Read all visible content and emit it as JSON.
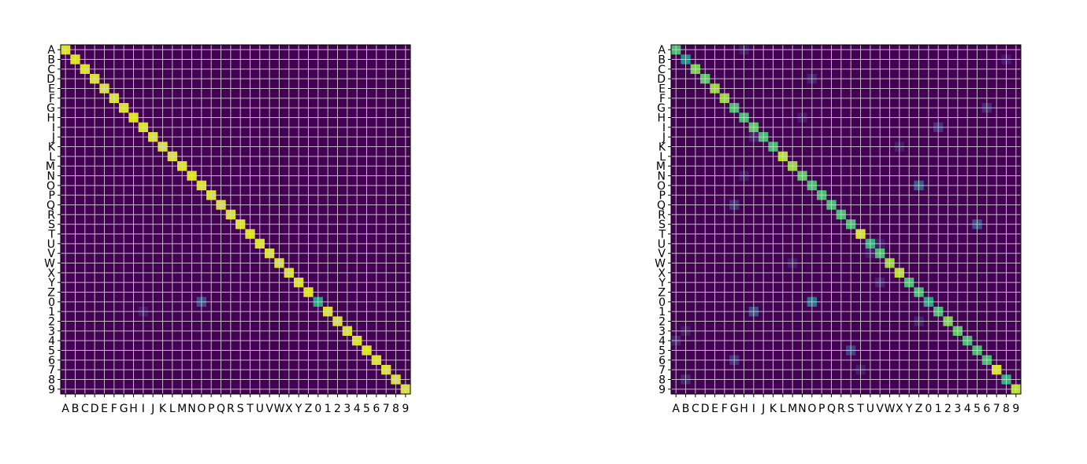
{
  "chart_data": [
    {
      "type": "heatmap",
      "title": "",
      "xlabel": "",
      "ylabel": "",
      "colormap": "viridis",
      "grid": true,
      "categories": [
        "A",
        "B",
        "C",
        "D",
        "E",
        "F",
        "G",
        "H",
        "I",
        "J",
        "K",
        "L",
        "M",
        "N",
        "O",
        "P",
        "Q",
        "R",
        "S",
        "T",
        "U",
        "V",
        "W",
        "X",
        "Y",
        "Z",
        "0",
        "1",
        "2",
        "3",
        "4",
        "5",
        "6",
        "7",
        "8",
        "9"
      ],
      "diagonal": [
        0.95,
        0.95,
        0.95,
        0.95,
        0.95,
        0.95,
        0.95,
        0.95,
        0.95,
        0.95,
        0.95,
        0.95,
        0.95,
        0.95,
        0.95,
        0.95,
        0.95,
        0.95,
        0.95,
        0.95,
        0.95,
        0.95,
        0.95,
        0.95,
        0.95,
        0.95,
        0.6,
        0.95,
        0.95,
        0.95,
        0.95,
        0.95,
        0.95,
        0.95,
        0.95,
        0.95
      ],
      "off_diagonal": [
        {
          "row": "0",
          "col": "O",
          "value": 0.25
        },
        {
          "row": "1",
          "col": "I",
          "value": 0.08
        }
      ]
    },
    {
      "type": "heatmap",
      "title": "",
      "xlabel": "",
      "ylabel": "",
      "colormap": "viridis",
      "grid": true,
      "categories": [
        "A",
        "B",
        "C",
        "D",
        "E",
        "F",
        "G",
        "H",
        "I",
        "J",
        "K",
        "L",
        "M",
        "N",
        "O",
        "P",
        "Q",
        "R",
        "S",
        "T",
        "U",
        "V",
        "W",
        "X",
        "Y",
        "Z",
        "0",
        "1",
        "2",
        "3",
        "4",
        "5",
        "6",
        "7",
        "8",
        "9"
      ],
      "diagonal": [
        0.7,
        0.5,
        0.8,
        0.75,
        0.85,
        0.85,
        0.7,
        0.7,
        0.75,
        0.7,
        0.7,
        0.9,
        0.85,
        0.75,
        0.7,
        0.7,
        0.7,
        0.7,
        0.7,
        0.95,
        0.65,
        0.7,
        0.85,
        0.9,
        0.7,
        0.7,
        0.6,
        0.7,
        0.8,
        0.75,
        0.7,
        0.7,
        0.7,
        0.95,
        0.65,
        0.9
      ],
      "off_diagonal": [
        {
          "row": "0",
          "col": "O",
          "value": 0.4
        },
        {
          "row": "O",
          "col": "Z",
          "value": 0.3
        },
        {
          "row": "1",
          "col": "I",
          "value": 0.25
        },
        {
          "row": "S",
          "col": "5",
          "value": 0.25
        },
        {
          "row": "5",
          "col": "S",
          "value": 0.2
        },
        {
          "row": "I",
          "col": "1",
          "value": 0.15
        },
        {
          "row": "Q",
          "col": "G",
          "value": 0.15
        },
        {
          "row": "6",
          "col": "G",
          "value": 0.15
        },
        {
          "row": "G",
          "col": "6",
          "value": 0.12
        },
        {
          "row": "4",
          "col": "A",
          "value": 0.1
        },
        {
          "row": "8",
          "col": "B",
          "value": 0.12
        },
        {
          "row": "Y",
          "col": "V",
          "value": 0.1
        },
        {
          "row": "2",
          "col": "Z",
          "value": 0.1
        },
        {
          "row": "A",
          "col": "H",
          "value": 0.08
        },
        {
          "row": "D",
          "col": "O",
          "value": 0.1
        },
        {
          "row": "J",
          "col": "I",
          "value": 0.1
        },
        {
          "row": "N",
          "col": "H",
          "value": 0.08
        },
        {
          "row": "U",
          "col": "V",
          "value": 0.08
        },
        {
          "row": "V",
          "col": "U",
          "value": 0.08
        },
        {
          "row": "W",
          "col": "M",
          "value": 0.08
        },
        {
          "row": "3",
          "col": "B",
          "value": 0.08
        },
        {
          "row": "7",
          "col": "T",
          "value": 0.08
        },
        {
          "row": "B",
          "col": "8",
          "value": 0.08
        },
        {
          "row": "H",
          "col": "N",
          "value": 0.08
        },
        {
          "row": "K",
          "col": "X",
          "value": 0.08
        }
      ]
    }
  ]
}
